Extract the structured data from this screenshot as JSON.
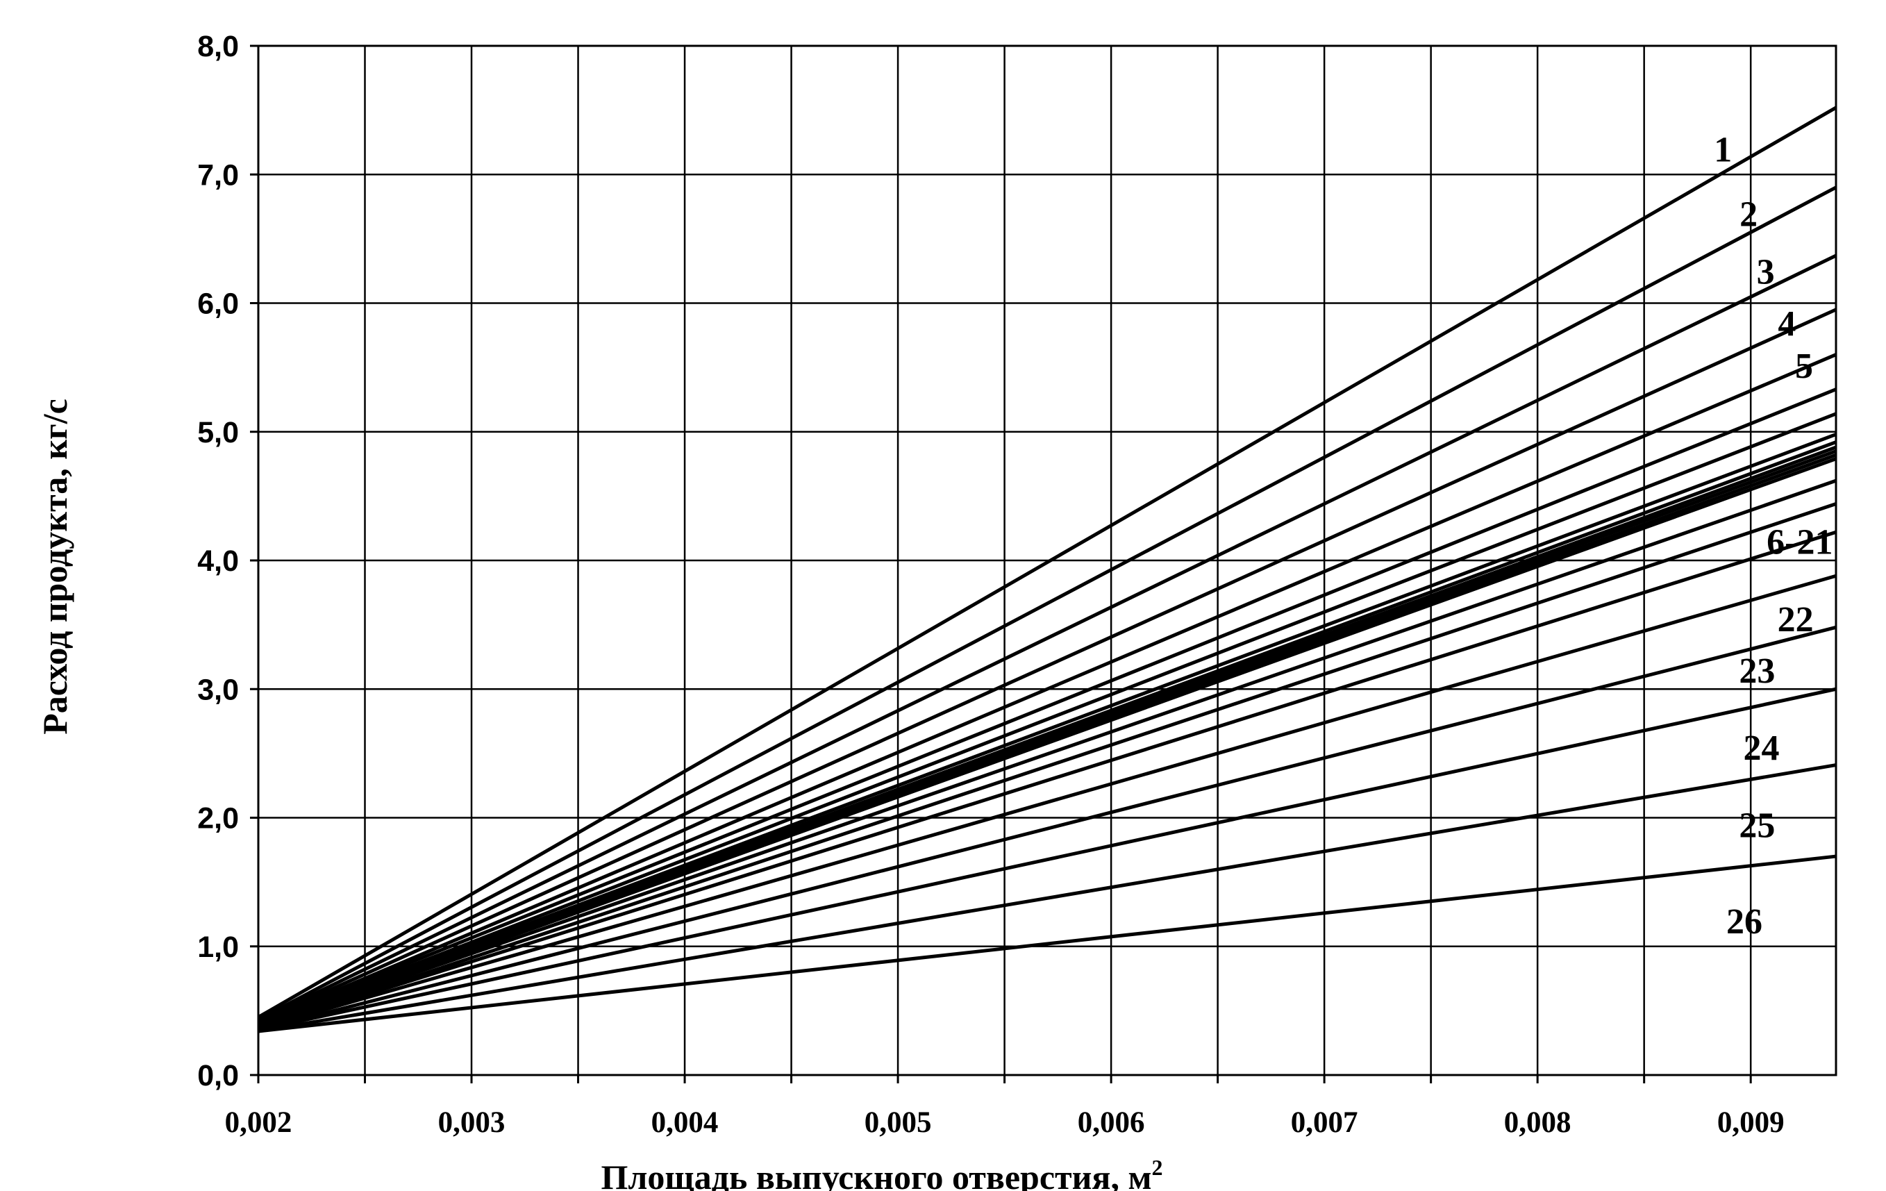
{
  "chart_data": {
    "type": "line",
    "title": "",
    "xlabel": "Площадь выпускного отверстия, м",
    "xlabel_sup": "2",
    "ylabel": "Расход продукта,  кг/с",
    "xlim": [
      0.002,
      0.0094
    ],
    "ylim": [
      0.0,
      8.0
    ],
    "grid": true,
    "x_ticks": [
      0.002,
      0.0025,
      0.003,
      0.0035,
      0.004,
      0.0045,
      0.005,
      0.0055,
      0.006,
      0.0065,
      0.007,
      0.0075,
      0.008,
      0.0085,
      0.009
    ],
    "x_tick_labels": [
      "0,002",
      "",
      "0,003",
      "",
      "0,004",
      "",
      "0,005",
      "",
      "0,006",
      "",
      "0,007",
      "",
      "0,008",
      "",
      "0,009"
    ],
    "y_ticks": [
      0.0,
      1.0,
      2.0,
      3.0,
      4.0,
      5.0,
      6.0,
      7.0,
      8.0
    ],
    "y_tick_labels": [
      "0,0",
      "1,0",
      "2,0",
      "3,0",
      "4,0",
      "5,0",
      "6,0",
      "7,0",
      "8,0"
    ],
    "x": [
      0.002,
      0.0094
    ],
    "series": [
      {
        "name": "1",
        "values": [
          0.45,
          7.52
        ]
      },
      {
        "name": "2",
        "values": [
          0.43,
          6.9
        ]
      },
      {
        "name": "3",
        "values": [
          0.42,
          6.37
        ]
      },
      {
        "name": "4",
        "values": [
          0.41,
          5.95
        ]
      },
      {
        "name": "5",
        "values": [
          0.4,
          5.6
        ]
      },
      {
        "values": [
          0.4,
          5.33
        ]
      },
      {
        "values": [
          0.39,
          5.14
        ]
      },
      {
        "values": [
          0.39,
          4.98
        ]
      },
      {
        "values": [
          0.38,
          4.92
        ]
      },
      {
        "values": [
          0.38,
          4.88
        ]
      },
      {
        "values": [
          0.38,
          4.85
        ]
      },
      {
        "values": [
          0.37,
          4.82
        ]
      },
      {
        "values": [
          0.37,
          4.79
        ]
      },
      {
        "values": [
          0.37,
          4.62
        ]
      },
      {
        "values": [
          0.36,
          4.44
        ]
      },
      {
        "values": [
          0.36,
          4.22
        ]
      },
      {
        "name": "22",
        "values": [
          0.36,
          3.88
        ]
      },
      {
        "name": "23",
        "values": [
          0.35,
          3.48
        ]
      },
      {
        "name": "24",
        "values": [
          0.35,
          3.0
        ]
      },
      {
        "name": "25",
        "values": [
          0.34,
          2.41
        ]
      },
      {
        "name": "26",
        "values": [
          0.34,
          1.7
        ]
      }
    ],
    "curve_labels": [
      {
        "text": "1",
        "x": 0.00887,
        "y": 7.1
      },
      {
        "text": "2",
        "x": 0.00899,
        "y": 6.6
      },
      {
        "text": "3",
        "x": 0.00907,
        "y": 6.15
      },
      {
        "text": "4",
        "x": 0.00917,
        "y": 5.75
      },
      {
        "text": "5",
        "x": 0.00925,
        "y": 5.42
      },
      {
        "text": "6-21",
        "x": 0.00923,
        "y": 4.05
      },
      {
        "text": "22",
        "x": 0.00921,
        "y": 3.45
      },
      {
        "text": "23",
        "x": 0.00903,
        "y": 3.05
      },
      {
        "text": "24",
        "x": 0.00905,
        "y": 2.45
      },
      {
        "text": "25",
        "x": 0.00903,
        "y": 1.85
      },
      {
        "text": "26",
        "x": 0.00897,
        "y": 1.1
      }
    ]
  }
}
